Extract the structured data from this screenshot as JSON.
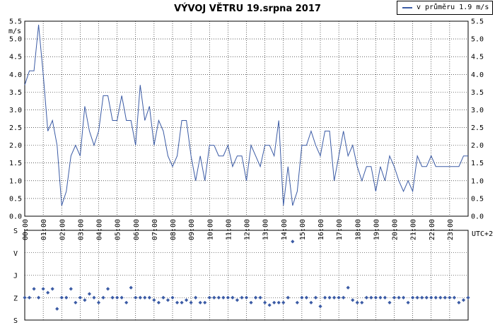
{
  "title": "VÝVOJ VĚTRU  19.srpna 2017",
  "legend": {
    "label": "v průměru 1.9 m/s",
    "color": "#3b5ba5"
  },
  "colors": {
    "line": "#3b5ba5",
    "marker": "#3b5ba5",
    "grid": "#000000"
  },
  "chart_data": [
    {
      "type": "line",
      "title": "VÝVOJ VĚTRU  19.srpna 2017",
      "ylabel": "m/s",
      "xlabel": "UTC+2",
      "grid": true,
      "legend_position": "top-right",
      "ylim": [
        0,
        5.5
      ],
      "xlim": [
        0,
        24
      ],
      "yticks": [
        0.0,
        0.5,
        1.0,
        1.5,
        2.0,
        2.5,
        3.0,
        3.5,
        4.0,
        4.5,
        5.0,
        5.5
      ],
      "ytick_labels": [
        "0.0",
        "0.5",
        "1.0",
        "1.5",
        "2.0",
        "2.5",
        "3.0",
        "3.5",
        "4.0",
        "4.5",
        "5.0",
        "5.5"
      ],
      "xtick_labels": [
        "00:00",
        "01:00",
        "02:00",
        "03:00",
        "04:00",
        "05:00",
        "06:00",
        "07:00",
        "08:00",
        "09:00",
        "10:00",
        "11:00",
        "12:00",
        "13:00",
        "14:00",
        "15:00",
        "16:00",
        "17:00",
        "18:00",
        "19:00",
        "20:00",
        "21:00",
        "22:00",
        "23:00"
      ],
      "series": [
        {
          "name": "v průměru 1.9 m/s",
          "values": [
            3.7,
            4.1,
            4.1,
            5.4,
            4.0,
            2.4,
            2.7,
            2.0,
            0.3,
            0.7,
            1.7,
            2.0,
            1.7,
            3.1,
            2.4,
            2.0,
            2.4,
            3.4,
            3.4,
            2.7,
            2.7,
            3.4,
            2.7,
            2.7,
            2.0,
            3.7,
            2.7,
            3.1,
            2.0,
            2.7,
            2.4,
            1.7,
            1.4,
            1.7,
            2.7,
            2.7,
            1.7,
            1.0,
            1.7,
            1.0,
            2.0,
            2.0,
            1.7,
            1.7,
            2.0,
            1.4,
            1.7,
            1.7,
            1.0,
            2.0,
            1.7,
            1.4,
            2.0,
            2.0,
            1.7,
            2.7,
            0.3,
            1.4,
            0.3,
            0.7,
            2.0,
            2.0,
            2.4,
            2.0,
            1.7,
            2.4,
            2.4,
            1.0,
            1.7,
            2.4,
            1.7,
            2.0,
            1.4,
            1.0,
            1.4,
            1.4,
            0.7,
            1.4,
            1.0,
            1.7,
            1.4,
            1.0,
            0.7,
            1.0,
            0.7,
            1.7,
            1.4,
            1.4,
            1.7,
            1.4,
            1.4,
            1.4,
            1.4,
            1.4,
            1.4,
            1.7,
            1.7
          ]
        }
      ]
    },
    {
      "type": "scatter",
      "xlabel": "",
      "ylabel": "",
      "grid": true,
      "xlim": [
        0,
        24
      ],
      "direction_labels": [
        "S",
        "V",
        "J",
        "Z",
        "S"
      ],
      "direction_degrees": [
        0,
        90,
        180,
        270,
        360
      ],
      "series": [
        {
          "values": [
            270,
            270,
            235,
            270,
            235,
            250,
            235,
            315,
            270,
            270,
            235,
            290,
            270,
            280,
            255,
            270,
            290,
            270,
            235,
            270,
            270,
            270,
            290,
            230,
            270,
            270,
            270,
            270,
            280,
            290,
            270,
            280,
            270,
            290,
            290,
            280,
            290,
            270,
            290,
            290,
            270,
            270,
            270,
            270,
            270,
            270,
            280,
            270,
            270,
            290,
            270,
            270,
            290,
            300,
            290,
            290,
            290,
            270,
            45,
            290,
            270,
            270,
            290,
            270,
            305,
            270,
            270,
            270,
            270,
            270,
            230,
            280,
            290,
            290,
            270,
            270,
            270,
            270,
            270,
            290,
            270,
            270,
            270,
            290,
            270,
            270,
            270,
            270,
            270,
            270,
            270,
            270,
            270,
            270,
            290,
            280,
            270
          ]
        }
      ]
    }
  ]
}
